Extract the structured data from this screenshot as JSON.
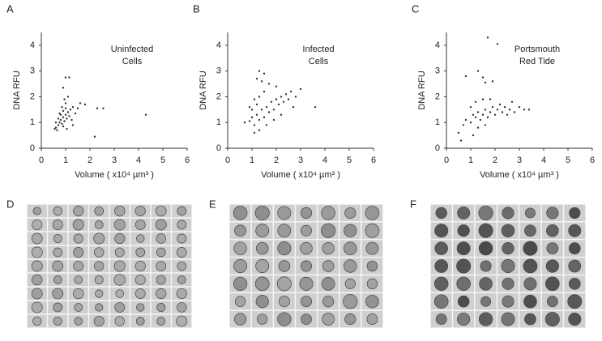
{
  "chart_data": [
    {
      "type": "scatter",
      "panel": "A",
      "annotation": [
        "Uninfected",
        "Cells"
      ],
      "x_label": "Volume ( x10⁴ µm³ )",
      "y_label": "DNA RFU",
      "color": "#333333",
      "xlim": [
        0,
        6
      ],
      "xticks": [
        0,
        1,
        2,
        3,
        4,
        5,
        6
      ],
      "ylim": [
        0,
        4.5
      ],
      "yticks": [
        0,
        1,
        2,
        3,
        4
      ],
      "x": [
        0.6,
        0.7,
        0.75,
        0.8,
        0.85,
        0.9,
        0.95,
        1.0,
        1.05,
        1.1,
        0.7,
        0.8,
        0.9,
        1.0,
        1.15,
        1.2,
        1.3,
        0.65,
        0.55,
        0.9,
        1.25,
        1.4,
        1.5,
        0.75,
        0.85,
        1.0,
        1.1,
        0.9,
        1.0,
        1.15,
        1.6,
        1.8,
        2.3,
        2.55,
        2.2,
        4.3,
        1.3,
        0.6,
        1.05,
        0.95
      ],
      "values": [
        0.8,
        0.9,
        1.0,
        1.1,
        0.95,
        1.2,
        1.05,
        1.3,
        1.15,
        1.4,
        1.15,
        1.3,
        1.45,
        1.55,
        1.25,
        1.5,
        1.6,
        0.7,
        0.75,
        0.85,
        1.1,
        1.35,
        1.55,
        1.35,
        1.6,
        1.75,
        2.0,
        2.35,
        2.75,
        2.75,
        1.75,
        1.7,
        1.55,
        1.55,
        0.45,
        1.3,
        0.9,
        1.0,
        0.75,
        1.9
      ]
    },
    {
      "type": "scatter",
      "panel": "B",
      "annotation": [
        "Infected",
        "Cells"
      ],
      "x_label": "Volume ( x10⁴ µm³ )",
      "y_label": "DNA RFU",
      "color": "#333333",
      "xlim": [
        0,
        6
      ],
      "xticks": [
        0,
        1,
        2,
        3,
        4,
        5,
        6
      ],
      "ylim": [
        0,
        4.5
      ],
      "yticks": [
        0,
        1,
        2,
        3,
        4
      ],
      "x": [
        0.7,
        0.9,
        1.0,
        1.1,
        1.2,
        1.3,
        1.4,
        1.5,
        1.6,
        1.7,
        1.8,
        1.9,
        2.0,
        2.1,
        2.2,
        2.3,
        2.4,
        2.5,
        2.6,
        2.8,
        1.2,
        1.3,
        1.5,
        1.0,
        1.1,
        1.3,
        1.6,
        1.9,
        2.2,
        2.7,
        3.6,
        3.0,
        1.3,
        1.5,
        1.2,
        1.4,
        1.7,
        2.0,
        0.9,
        1.1
      ],
      "values": [
        1.0,
        1.05,
        1.2,
        0.9,
        1.3,
        1.1,
        1.5,
        1.2,
        1.6,
        1.4,
        1.8,
        1.5,
        1.9,
        1.7,
        2.0,
        1.8,
        2.1,
        1.9,
        2.2,
        2.0,
        1.7,
        2.0,
        2.2,
        1.5,
        0.6,
        0.7,
        0.9,
        1.1,
        1.3,
        1.6,
        1.6,
        2.3,
        3.0,
        2.9,
        2.7,
        2.6,
        2.5,
        2.4,
        1.6,
        1.9
      ]
    },
    {
      "type": "scatter",
      "panel": "C",
      "annotation": [
        "Portsmouth",
        "Red Tide"
      ],
      "x_label": "Volume ( x10⁴ µm³ )",
      "y_label": "DNA RFU",
      "color": "#333333",
      "xlim": [
        0,
        6
      ],
      "xticks": [
        0,
        1,
        2,
        3,
        4,
        5,
        6
      ],
      "ylim": [
        0,
        4.5
      ],
      "yticks": [
        0,
        1,
        2,
        3,
        4
      ],
      "x": [
        0.5,
        0.7,
        0.8,
        1.0,
        1.1,
        1.2,
        1.3,
        1.4,
        1.5,
        1.6,
        1.7,
        1.8,
        1.9,
        2.0,
        2.1,
        2.2,
        2.3,
        2.4,
        2.5,
        2.6,
        2.8,
        3.0,
        3.2,
        3.4,
        1.0,
        1.2,
        1.5,
        1.8,
        1.3,
        1.6,
        0.6,
        0.8,
        1.3,
        1.5,
        1.9,
        1.6,
        2.1,
        1.7,
        1.1,
        2.7
      ],
      "values": [
        0.6,
        0.9,
        1.1,
        1.0,
        1.3,
        1.2,
        1.4,
        1.1,
        1.3,
        1.5,
        1.2,
        1.4,
        1.6,
        1.3,
        1.5,
        1.7,
        1.4,
        1.6,
        1.3,
        1.5,
        1.4,
        1.6,
        1.5,
        1.5,
        1.6,
        1.8,
        1.9,
        1.9,
        0.8,
        0.9,
        0.3,
        2.8,
        3.0,
        2.75,
        2.6,
        2.55,
        4.05,
        4.3,
        0.5,
        1.8
      ]
    }
  ],
  "image_panels": [
    "D",
    "E",
    "F"
  ]
}
